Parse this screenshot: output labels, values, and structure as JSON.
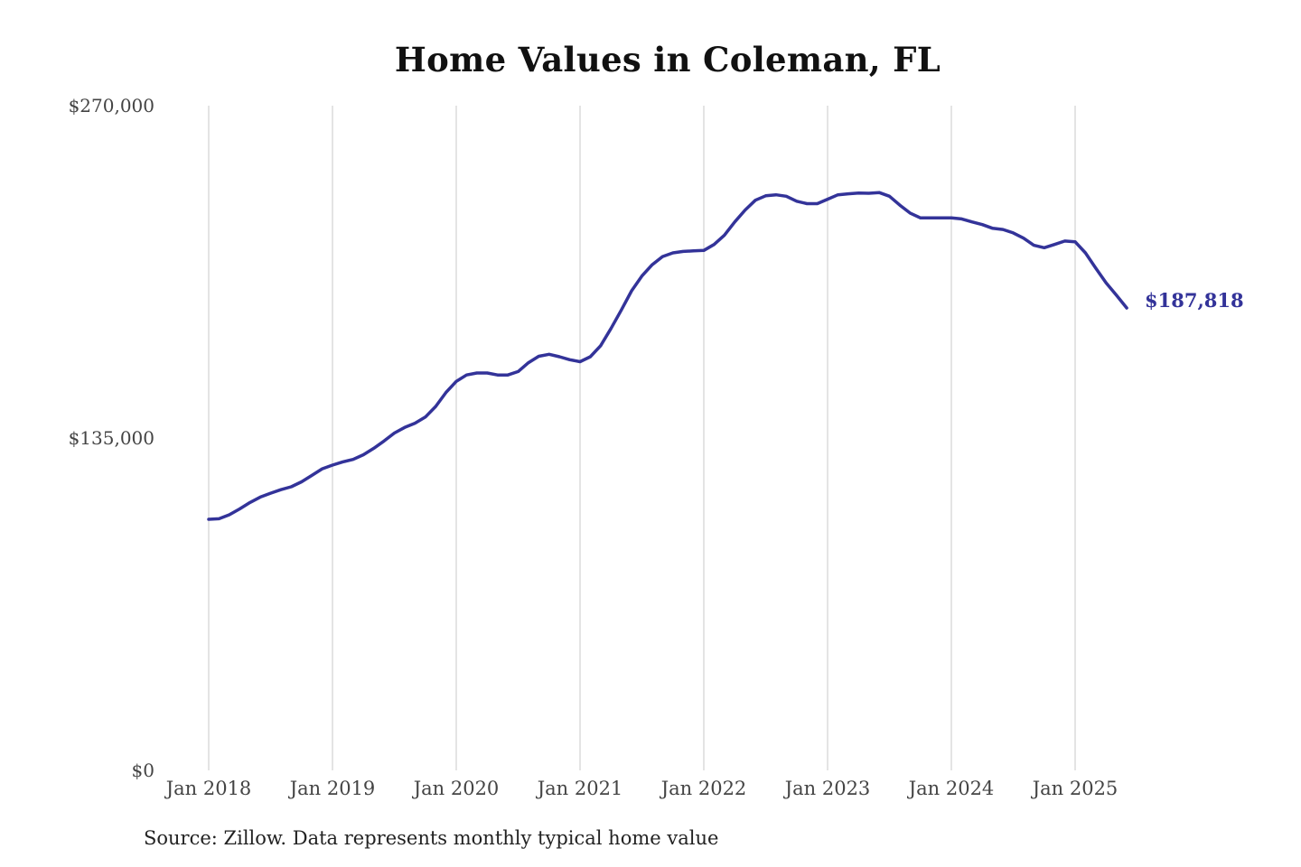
{
  "title": "Home Values in Coleman, FL",
  "source": "Source: Zillow. Data represents monthly typical home value",
  "colors": {
    "line": "#333399",
    "grid": "#c8c8c8",
    "text": "#444444",
    "title": "#111111"
  },
  "chart_data": {
    "type": "line",
    "title": "Home Values in Coleman, FL",
    "xlabel": "",
    "ylabel": "",
    "ylim": [
      0,
      270000
    ],
    "y_ticks": [
      {
        "value": 0,
        "label": "$0"
      },
      {
        "value": 135000,
        "label": "$135,000"
      },
      {
        "value": 270000,
        "label": "$270,000"
      }
    ],
    "x_ticks": [
      {
        "value": "2018-01",
        "label": "Jan 2018"
      },
      {
        "value": "2019-01",
        "label": "Jan 2019"
      },
      {
        "value": "2020-01",
        "label": "Jan 2020"
      },
      {
        "value": "2021-01",
        "label": "Jan 2021"
      },
      {
        "value": "2022-01",
        "label": "Jan 2022"
      },
      {
        "value": "2023-01",
        "label": "Jan 2023"
      },
      {
        "value": "2024-01",
        "label": "Jan 2024"
      },
      {
        "value": "2025-01",
        "label": "Jan 2025"
      }
    ],
    "grid": "vertical",
    "end_label": "$187,818",
    "series": [
      {
        "x": [
          "2018-01",
          "2018-02",
          "2018-03",
          "2018-04",
          "2018-05",
          "2018-06",
          "2018-07",
          "2018-08",
          "2018-09",
          "2018-10",
          "2018-11",
          "2018-12",
          "2019-01",
          "2019-02",
          "2019-03",
          "2019-04",
          "2019-05",
          "2019-06",
          "2019-07",
          "2019-08",
          "2019-09",
          "2019-10",
          "2019-11",
          "2019-12",
          "2020-01",
          "2020-02",
          "2020-03",
          "2020-04",
          "2020-05",
          "2020-06",
          "2020-07",
          "2020-08",
          "2020-09",
          "2020-10",
          "2020-11",
          "2020-12",
          "2021-01",
          "2021-02",
          "2021-03",
          "2021-04",
          "2021-05",
          "2021-06",
          "2021-07",
          "2021-08",
          "2021-09",
          "2021-10",
          "2021-11",
          "2021-12",
          "2022-01",
          "2022-02",
          "2022-03",
          "2022-04",
          "2022-05",
          "2022-06",
          "2022-07",
          "2022-08",
          "2022-09",
          "2022-10",
          "2022-11",
          "2022-12",
          "2023-01",
          "2023-02",
          "2023-03",
          "2023-04",
          "2023-05",
          "2023-06",
          "2023-07",
          "2023-08",
          "2023-09",
          "2023-10",
          "2023-11",
          "2023-12",
          "2024-01",
          "2024-02",
          "2024-03",
          "2024-04",
          "2024-05",
          "2024-06",
          "2024-07",
          "2024-08",
          "2024-09",
          "2024-10",
          "2024-11",
          "2024-12",
          "2025-01",
          "2025-02",
          "2025-03",
          "2025-04",
          "2025-05",
          "2025-06"
        ],
        "values": [
          102000,
          102200,
          103800,
          106200,
          108800,
          111000,
          112600,
          114000,
          115200,
          117200,
          119800,
          122500,
          124000,
          125300,
          126300,
          128200,
          130800,
          133800,
          137000,
          139300,
          141000,
          143500,
          147800,
          153500,
          158000,
          160600,
          161400,
          161400,
          160600,
          160600,
          162000,
          165600,
          168200,
          169000,
          168000,
          166800,
          166000,
          168000,
          172500,
          179500,
          187000,
          194800,
          200800,
          205400,
          208700,
          210200,
          210800,
          211000,
          211200,
          213600,
          217400,
          222800,
          227600,
          231600,
          233400,
          233800,
          233200,
          231200,
          230200,
          230200,
          232000,
          233800,
          234200,
          234500,
          234400,
          234700,
          233200,
          229600,
          226400,
          224400,
          224400,
          224400,
          224400,
          224000,
          222800,
          221700,
          220200,
          219700,
          218300,
          216200,
          213300,
          212300,
          213600,
          215000,
          214700,
          210200,
          204000,
          198000,
          193000,
          187818
        ]
      }
    ]
  }
}
